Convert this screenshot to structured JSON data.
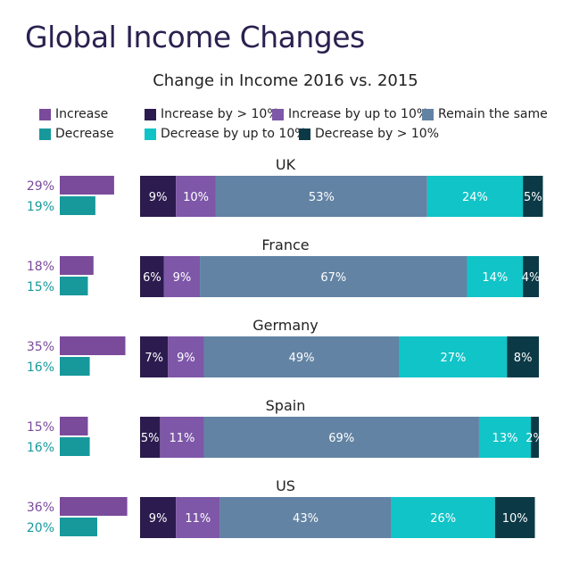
{
  "title": "Global Income Changes",
  "chart_data": {
    "type": "bar",
    "title": "Change in Income 2016 vs. 2015",
    "stacked_series": [
      {
        "name": "Increase by > 10%",
        "color": "#2c1b4e",
        "values": [
          9,
          6,
          7,
          5,
          9
        ]
      },
      {
        "name": "Increase by up to 10%",
        "color": "#7e57a8",
        "values": [
          10,
          9,
          9,
          11,
          11
        ]
      },
      {
        "name": "Remain the same",
        "color": "#6283a3",
        "values": [
          53,
          67,
          49,
          69,
          43
        ]
      },
      {
        "name": "Decrease by up to 10%",
        "color": "#10c4c8",
        "values": [
          24,
          14,
          27,
          13,
          26
        ]
      },
      {
        "name": "Decrease by > 10%",
        "color": "#0b3a46",
        "values": [
          5,
          4,
          8,
          2,
          10
        ]
      }
    ],
    "side_series": [
      {
        "name": "Increase",
        "color": "#7a4a9b",
        "values": [
          29,
          18,
          35,
          15,
          36
        ]
      },
      {
        "name": "Decrease",
        "color": "#17999c",
        "values": [
          19,
          15,
          16,
          16,
          20
        ]
      }
    ],
    "categories": [
      "UK",
      "France",
      "Germany",
      "Spain",
      "US"
    ],
    "value_suffix": "%",
    "xlabel": "",
    "ylabel": ""
  },
  "colors": {
    "title": "#2b2150",
    "increase_label": "#7a4a9b",
    "decrease_label": "#17999c",
    "light_text": "#ffffff"
  }
}
